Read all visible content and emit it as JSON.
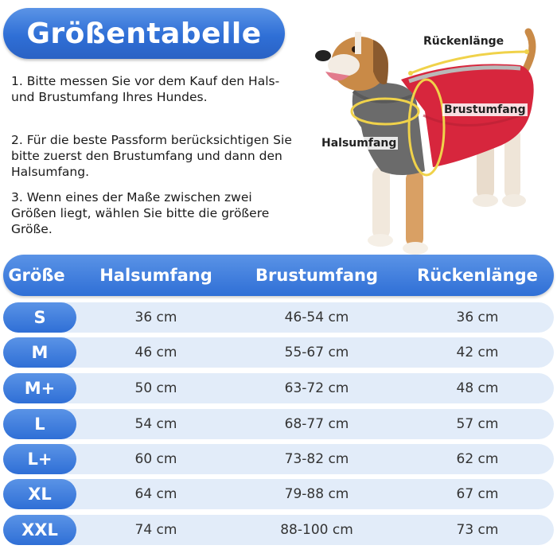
{
  "title": "Größentabelle",
  "instructions": [
    "1. Bitte messen Sie vor dem Kauf den Hals- und Brustumfang Ihres Hundes.",
    "2. Für die beste Passform berücksichtigen Sie bitte zuerst den Brustumfang und dann den Halsumfang.",
    "3. Wenn eines der Maße zwischen zwei Größen liegt, wählen Sie bitte die größere Größe."
  ],
  "dog_labels": {
    "back_length": "Rückenlänge",
    "chest": "Brustumfang",
    "neck": "Halsumfang"
  },
  "colors": {
    "accent_blue": "#2f6fd6",
    "row_bg": "#e2ecf9",
    "coat_red": "#d7263d",
    "collar_grey": "#6b6b6b",
    "measure_yellow": "#f0d24a"
  },
  "table": {
    "headers": [
      "Größe",
      "Halsumfang",
      "Brustumfang",
      "Rückenlänge"
    ],
    "rows": [
      {
        "size": "S",
        "neck": "36 cm",
        "chest": "46-54 cm",
        "back": "36 cm"
      },
      {
        "size": "M",
        "neck": "46 cm",
        "chest": "55-67 cm",
        "back": "42 cm"
      },
      {
        "size": "M+",
        "neck": "50 cm",
        "chest": "63-72 cm",
        "back": "48 cm"
      },
      {
        "size": "L",
        "neck": "54 cm",
        "chest": "68-77 cm",
        "back": "57 cm"
      },
      {
        "size": "L+",
        "neck": "60 cm",
        "chest": "73-82 cm",
        "back": "62 cm"
      },
      {
        "size": "XL",
        "neck": "64 cm",
        "chest": "79-88 cm",
        "back": "67 cm"
      },
      {
        "size": "XXL",
        "neck": "74 cm",
        "chest": "88-100 cm",
        "back": "73 cm"
      }
    ]
  }
}
